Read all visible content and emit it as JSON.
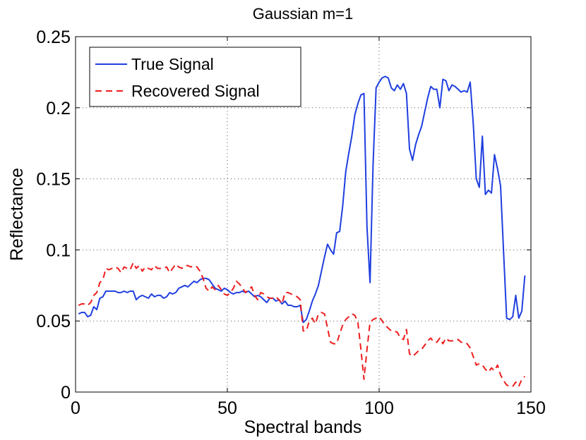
{
  "chart_data": {
    "type": "line",
    "title": "Gaussian m=1",
    "xlabel": "Spectral bands",
    "ylabel": "Reflectance",
    "xlim": [
      0,
      150
    ],
    "ylim": [
      0,
      0.25
    ],
    "xticks": [
      0,
      50,
      100,
      150
    ],
    "xtick_labels": [
      "0",
      "50",
      "100",
      "150"
    ],
    "yticks": [
      0,
      0.05,
      0.1,
      0.15,
      0.2,
      0.25
    ],
    "ytick_labels": [
      "0",
      "0.05",
      "0.1",
      "0.15",
      "0.2",
      "0.25"
    ],
    "grid": true,
    "grid_style": "dotted",
    "legend_position": "top-left",
    "series": [
      {
        "name": "True Signal",
        "color": "#1f3fe0",
        "style": "solid",
        "x": [
          1,
          2,
          3,
          4,
          5,
          6,
          7,
          8,
          9,
          10,
          11,
          12,
          13,
          14,
          15,
          16,
          17,
          18,
          19,
          20,
          21,
          22,
          23,
          24,
          25,
          26,
          27,
          28,
          29,
          30,
          31,
          32,
          33,
          34,
          35,
          36,
          37,
          38,
          39,
          40,
          41,
          42,
          43,
          44,
          45,
          46,
          47,
          48,
          49,
          50,
          51,
          52,
          53,
          54,
          55,
          56,
          57,
          58,
          59,
          60,
          61,
          62,
          63,
          64,
          65,
          66,
          67,
          68,
          69,
          70,
          71,
          72,
          73,
          74,
          75,
          76,
          77,
          78,
          79,
          80,
          81,
          82,
          83,
          84,
          85,
          86,
          87,
          88,
          89,
          90,
          91,
          92,
          93,
          94,
          95,
          96,
          97,
          98,
          99,
          100,
          101,
          102,
          103,
          104,
          105,
          106,
          107,
          108,
          109,
          110,
          111,
          112,
          113,
          114,
          115,
          116,
          117,
          118,
          119,
          120,
          121,
          122,
          123,
          124,
          125,
          126,
          127,
          128,
          129,
          130,
          131,
          132,
          133,
          134,
          135,
          136,
          137,
          138,
          139,
          140,
          141,
          142,
          143,
          144,
          145,
          146,
          147,
          148
        ],
        "y": [
          0.055,
          0.056,
          0.056,
          0.053,
          0.054,
          0.06,
          0.058,
          0.066,
          0.067,
          0.071,
          0.071,
          0.071,
          0.071,
          0.07,
          0.07,
          0.071,
          0.07,
          0.071,
          0.071,
          0.065,
          0.067,
          0.068,
          0.067,
          0.066,
          0.069,
          0.067,
          0.068,
          0.068,
          0.066,
          0.067,
          0.07,
          0.069,
          0.07,
          0.073,
          0.074,
          0.075,
          0.074,
          0.076,
          0.078,
          0.077,
          0.079,
          0.08,
          0.08,
          0.079,
          0.076,
          0.073,
          0.072,
          0.071,
          0.073,
          0.072,
          0.07,
          0.069,
          0.07,
          0.07,
          0.071,
          0.07,
          0.071,
          0.069,
          0.067,
          0.068,
          0.067,
          0.065,
          0.063,
          0.066,
          0.066,
          0.064,
          0.065,
          0.062,
          0.064,
          0.061,
          0.061,
          0.06,
          0.06,
          0.061,
          0.049,
          0.051,
          0.057,
          0.064,
          0.069,
          0.075,
          0.085,
          0.095,
          0.104,
          0.1,
          0.097,
          0.112,
          0.113,
          0.131,
          0.155,
          0.168,
          0.18,
          0.195,
          0.203,
          0.209,
          0.21,
          0.116,
          0.077,
          0.16,
          0.214,
          0.218,
          0.221,
          0.222,
          0.221,
          0.214,
          0.212,
          0.216,
          0.213,
          0.217,
          0.21,
          0.171,
          0.163,
          0.174,
          0.181,
          0.187,
          0.197,
          0.207,
          0.215,
          0.213,
          0.213,
          0.2,
          0.22,
          0.219,
          0.212,
          0.216,
          0.215,
          0.213,
          0.211,
          0.212,
          0.211,
          0.218,
          0.189,
          0.15,
          0.144,
          0.18,
          0.139,
          0.142,
          0.14,
          0.167,
          0.157,
          0.145,
          0.098,
          0.052,
          0.051,
          0.053,
          0.068,
          0.052,
          0.057,
          0.082
        ]
      },
      {
        "name": "Recovered Signal",
        "color": "#ee1c1c",
        "style": "dashed",
        "x": [
          1,
          2,
          3,
          4,
          5,
          6,
          7,
          8,
          9,
          10,
          11,
          12,
          13,
          14,
          15,
          16,
          17,
          18,
          19,
          20,
          21,
          22,
          23,
          24,
          25,
          26,
          27,
          28,
          29,
          30,
          31,
          32,
          33,
          34,
          35,
          36,
          37,
          38,
          39,
          40,
          41,
          42,
          43,
          44,
          45,
          46,
          47,
          48,
          49,
          50,
          51,
          52,
          53,
          54,
          55,
          56,
          57,
          58,
          59,
          60,
          61,
          62,
          63,
          64,
          65,
          66,
          67,
          68,
          69,
          70,
          71,
          72,
          73,
          74,
          75,
          76,
          77,
          78,
          79,
          80,
          81,
          82,
          83,
          84,
          85,
          86,
          87,
          88,
          89,
          90,
          91,
          92,
          93,
          94,
          95,
          96,
          97,
          98,
          99,
          100,
          101,
          102,
          103,
          104,
          105,
          106,
          107,
          108,
          109,
          110,
          111,
          112,
          113,
          114,
          115,
          116,
          117,
          118,
          119,
          120,
          121,
          122,
          123,
          124,
          125,
          126,
          127,
          128,
          129,
          130,
          131,
          132,
          133,
          134,
          135,
          136,
          137,
          138,
          139,
          140,
          141,
          142,
          143,
          144,
          145,
          146,
          147,
          148
        ],
        "y": [
          0.061,
          0.062,
          0.062,
          0.061,
          0.063,
          0.068,
          0.07,
          0.077,
          0.079,
          0.087,
          0.086,
          0.087,
          0.088,
          0.087,
          0.084,
          0.088,
          0.087,
          0.086,
          0.091,
          0.087,
          0.089,
          0.085,
          0.088,
          0.087,
          0.086,
          0.089,
          0.087,
          0.087,
          0.087,
          0.088,
          0.084,
          0.087,
          0.09,
          0.088,
          0.087,
          0.089,
          0.089,
          0.088,
          0.089,
          0.088,
          0.085,
          0.08,
          0.073,
          0.071,
          0.074,
          0.072,
          0.075,
          0.072,
          0.069,
          0.068,
          0.07,
          0.073,
          0.078,
          0.076,
          0.073,
          0.07,
          0.072,
          0.074,
          0.068,
          0.065,
          0.07,
          0.069,
          0.067,
          0.066,
          0.066,
          0.067,
          0.065,
          0.062,
          0.07,
          0.07,
          0.069,
          0.068,
          0.067,
          0.065,
          0.043,
          0.043,
          0.05,
          0.052,
          0.048,
          0.055,
          0.056,
          0.055,
          0.045,
          0.035,
          0.034,
          0.034,
          0.041,
          0.047,
          0.051,
          0.053,
          0.055,
          0.054,
          0.049,
          0.03,
          0.009,
          0.03,
          0.049,
          0.051,
          0.052,
          0.053,
          0.05,
          0.047,
          0.045,
          0.043,
          0.043,
          0.042,
          0.038,
          0.037,
          0.044,
          0.027,
          0.025,
          0.027,
          0.029,
          0.03,
          0.033,
          0.036,
          0.038,
          0.035,
          0.035,
          0.038,
          0.034,
          0.038,
          0.036,
          0.036,
          0.036,
          0.037,
          0.035,
          0.035,
          0.034,
          0.031,
          0.025,
          0.019,
          0.02,
          0.019,
          0.016,
          0.014,
          0.017,
          0.015,
          0.019,
          0.012,
          0.008,
          0.005,
          0.004,
          0.004,
          0.007,
          0.004,
          0.009,
          0.011
        ]
      }
    ]
  }
}
